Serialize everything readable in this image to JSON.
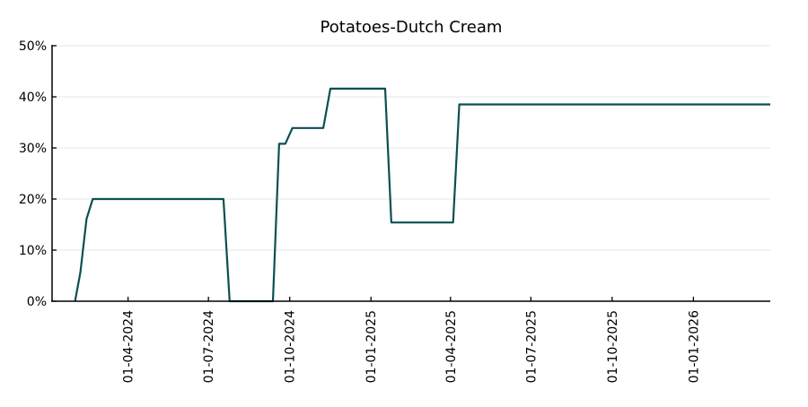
{
  "chart_data": {
    "type": "line",
    "title": "Potatoes-Dutch Cream",
    "xlabel": "",
    "ylabel": "",
    "date_format": "DD-MM-YYYY",
    "ylim": [
      0,
      50
    ],
    "yticks": [
      0,
      10,
      20,
      30,
      40,
      50
    ],
    "ytick_labels": [
      "0%",
      "10%",
      "20%",
      "30%",
      "40%",
      "50%"
    ],
    "xlim": [
      "2024-01-06",
      "2026-03-29"
    ],
    "xticks": [
      "2024-04-01",
      "2024-07-01",
      "2024-10-01",
      "2025-01-01",
      "2025-04-01",
      "2025-07-01",
      "2025-10-01",
      "2026-01-01"
    ],
    "xtick_labels": [
      "01-04-2024",
      "01-07-2024",
      "01-10-2024",
      "01-01-2025",
      "01-04-2025",
      "01-07-2025",
      "01-10-2025",
      "01-01-2026"
    ],
    "grid": "horizontal",
    "line_color": "#0d4f52",
    "series": [
      {
        "x": [
          "2024-02-01",
          "2024-02-07",
          "2024-02-14",
          "2024-02-21",
          "2024-07-18",
          "2024-07-25",
          "2024-09-12",
          "2024-09-19",
          "2024-09-26",
          "2024-10-04",
          "2024-11-08",
          "2024-11-16",
          "2025-01-17",
          "2025-01-24",
          "2025-04-04",
          "2025-04-11",
          "2026-03-29"
        ],
        "y": [
          0,
          5.6,
          16.1,
          20,
          20,
          0,
          0,
          30.8,
          30.8,
          33.9,
          33.9,
          41.6,
          41.6,
          15.4,
          15.4,
          38.5,
          38.5
        ]
      }
    ]
  }
}
